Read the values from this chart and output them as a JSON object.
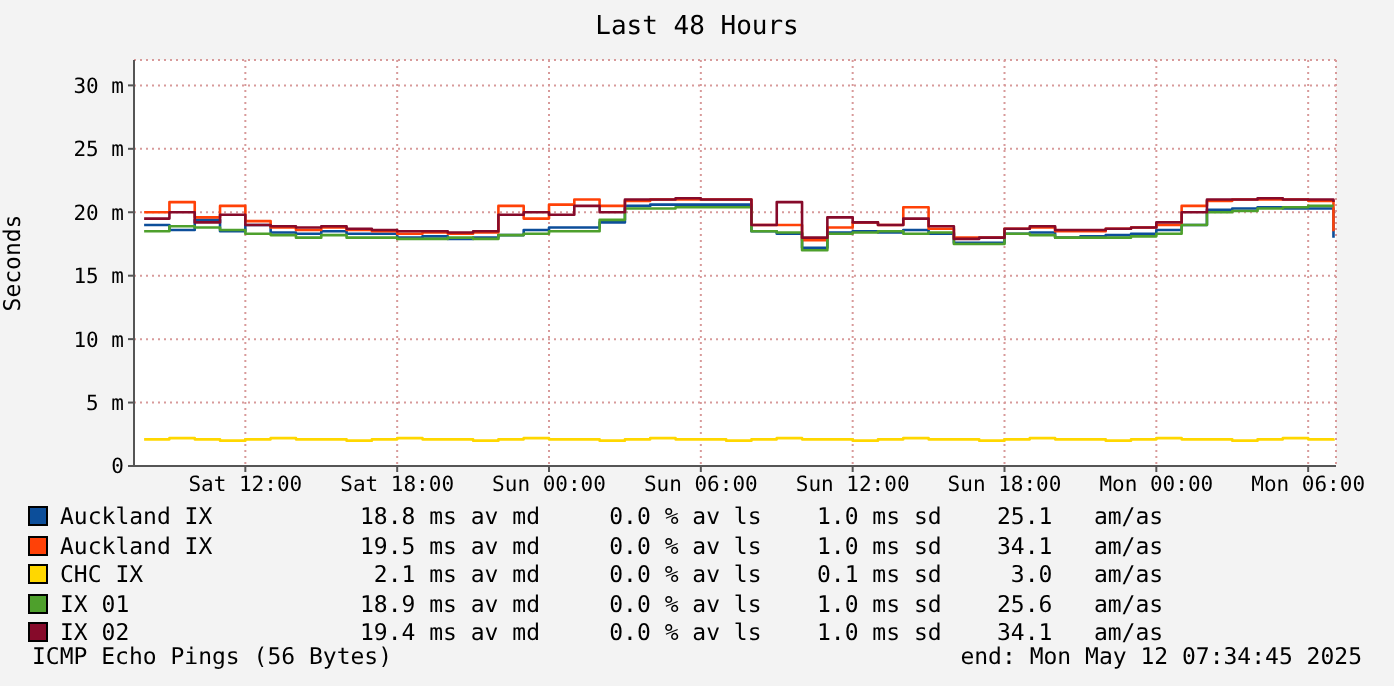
{
  "chart_data": {
    "type": "step",
    "title": "Last 48 Hours",
    "ylabel": "Seconds",
    "x": [
      "2025-05-10T08:00",
      "2025-05-10T09:00",
      "2025-05-10T10:00",
      "2025-05-10T11:00",
      "2025-05-10T12:00",
      "2025-05-10T13:00",
      "2025-05-10T14:00",
      "2025-05-10T15:00",
      "2025-05-10T16:00",
      "2025-05-10T17:00",
      "2025-05-10T18:00",
      "2025-05-10T19:00",
      "2025-05-10T20:00",
      "2025-05-10T21:00",
      "2025-05-10T22:00",
      "2025-05-10T23:00",
      "2025-05-11T00:00",
      "2025-05-11T01:00",
      "2025-05-11T02:00",
      "2025-05-11T03:00",
      "2025-05-11T04:00",
      "2025-05-11T05:00",
      "2025-05-11T06:00",
      "2025-05-11T07:00",
      "2025-05-11T08:00",
      "2025-05-11T09:00",
      "2025-05-11T10:00",
      "2025-05-11T11:00",
      "2025-05-11T12:00",
      "2025-05-11T13:00",
      "2025-05-11T14:00",
      "2025-05-11T15:00",
      "2025-05-11T16:00",
      "2025-05-11T17:00",
      "2025-05-11T18:00",
      "2025-05-11T19:00",
      "2025-05-11T20:00",
      "2025-05-11T21:00",
      "2025-05-11T22:00",
      "2025-05-11T23:00",
      "2025-05-12T00:00",
      "2025-05-12T01:00",
      "2025-05-12T02:00",
      "2025-05-12T03:00",
      "2025-05-12T04:00",
      "2025-05-12T05:00",
      "2025-05-12T06:00",
      "2025-05-12T07:00"
    ],
    "xlim": [
      "2025-05-10T07:36",
      "2025-05-12T07:06"
    ],
    "xticks": [
      {
        "value": "2025-05-10T12:00",
        "label": "Sat 12:00"
      },
      {
        "value": "2025-05-10T18:00",
        "label": "Sat 18:00"
      },
      {
        "value": "2025-05-11T00:00",
        "label": "Sun 00:00"
      },
      {
        "value": "2025-05-11T06:00",
        "label": "Sun 06:00"
      },
      {
        "value": "2025-05-11T12:00",
        "label": "Sun 12:00"
      },
      {
        "value": "2025-05-11T18:00",
        "label": "Sun 18:00"
      },
      {
        "value": "2025-05-12T00:00",
        "label": "Mon 00:00"
      },
      {
        "value": "2025-05-12T06:00",
        "label": "Mon 06:00"
      }
    ],
    "ylim": [
      0,
      32
    ],
    "yticks": [
      0,
      {
        "value": 5,
        "label": "5 m"
      },
      {
        "value": 10,
        "label": "10 m"
      },
      {
        "value": 15,
        "label": "15 m"
      },
      {
        "value": 20,
        "label": "20 m"
      },
      {
        "value": 25,
        "label": "25 m"
      },
      {
        "value": 30,
        "label": "30 m"
      }
    ],
    "grid": true,
    "legend": "bottom",
    "marker": "none",
    "series": [
      {
        "name": "Auckland IX",
        "color": "#0c4e9a",
        "values": [
          19.0,
          18.6,
          19.4,
          18.5,
          19.0,
          18.4,
          18.3,
          18.5,
          18.3,
          18.3,
          18.0,
          18.1,
          17.9,
          18.0,
          18.2,
          18.6,
          18.8,
          18.8,
          19.2,
          20.5,
          20.6,
          20.6,
          20.6,
          20.6,
          18.5,
          18.3,
          17.2,
          18.4,
          18.5,
          18.4,
          18.6,
          18.3,
          17.6,
          17.6,
          18.3,
          18.4,
          18.0,
          18.1,
          18.2,
          18.3,
          18.6,
          19.0,
          20.2,
          20.3,
          20.4,
          20.3,
          20.3,
          18.0
        ]
      },
      {
        "name": "Auckland IX",
        "color": "#ff4107",
        "values": [
          20.0,
          20.8,
          19.6,
          20.5,
          19.3,
          18.8,
          18.6,
          18.8,
          18.6,
          18.5,
          18.3,
          18.4,
          18.3,
          18.4,
          20.5,
          19.5,
          20.6,
          21.0,
          20.5,
          20.9,
          21.0,
          21.0,
          21.0,
          21.0,
          19.0,
          19.0,
          17.8,
          18.8,
          19.2,
          19.0,
          20.4,
          18.7,
          18.0,
          18.0,
          18.7,
          18.8,
          18.5,
          18.5,
          18.7,
          18.8,
          19.0,
          20.5,
          20.9,
          21.0,
          21.0,
          21.0,
          20.9,
          18.5
        ]
      },
      {
        "name": "CHC IX",
        "color": "#ffd700",
        "values": [
          2.1,
          2.2,
          2.1,
          2.0,
          2.1,
          2.2,
          2.1,
          2.1,
          2.0,
          2.1,
          2.2,
          2.1,
          2.1,
          2.0,
          2.1,
          2.2,
          2.1,
          2.1,
          2.0,
          2.1,
          2.2,
          2.1,
          2.1,
          2.0,
          2.1,
          2.2,
          2.1,
          2.1,
          2.0,
          2.1,
          2.2,
          2.1,
          2.1,
          2.0,
          2.1,
          2.2,
          2.1,
          2.1,
          2.0,
          2.1,
          2.2,
          2.1,
          2.1,
          2.0,
          2.1,
          2.2,
          2.1,
          2.0
        ]
      },
      {
        "name": "IX 01",
        "color": "#4ea02c",
        "values": [
          18.5,
          18.9,
          18.8,
          18.6,
          18.3,
          18.2,
          18.0,
          18.2,
          18.0,
          18.0,
          17.9,
          17.9,
          18.0,
          17.9,
          18.2,
          18.3,
          18.5,
          18.5,
          19.4,
          20.3,
          20.3,
          20.4,
          20.4,
          20.4,
          18.5,
          18.4,
          17.0,
          18.3,
          18.4,
          18.5,
          18.3,
          18.4,
          17.5,
          17.5,
          18.3,
          18.2,
          18.0,
          18.0,
          18.0,
          18.1,
          18.3,
          19.0,
          20.0,
          20.1,
          20.3,
          20.4,
          20.5,
          20.5
        ]
      },
      {
        "name": "IX 02",
        "color": "#860a2a",
        "values": [
          19.5,
          20.0,
          19.2,
          19.8,
          19.0,
          18.9,
          18.8,
          18.9,
          18.7,
          18.6,
          18.5,
          18.5,
          18.4,
          18.5,
          19.8,
          20.0,
          19.8,
          20.5,
          20.0,
          21.0,
          21.0,
          21.1,
          21.0,
          21.0,
          19.0,
          20.8,
          18.0,
          19.6,
          19.2,
          19.0,
          19.5,
          18.9,
          17.9,
          18.0,
          18.7,
          18.9,
          18.6,
          18.6,
          18.7,
          18.8,
          19.2,
          20.0,
          21.0,
          21.0,
          21.1,
          21.0,
          21.0,
          20.8
        ]
      }
    ],
    "annotations": [
      "18.8 ms av md     0.0 % av ls    1.0 ms sd    25.1   am/as",
      "19.5 ms av md     0.0 % av ls    1.0 ms sd    34.1   am/as",
      " 2.1 ms av md     0.0 % av ls    0.1 ms sd     3.0   am/as",
      "18.9 ms av md     0.0 % av ls    1.0 ms sd    25.6   am/as",
      "19.4 ms av md     0.0 % av ls    1.0 ms sd    34.1   am/as",
      "ICMP Echo Pings (56 Bytes)",
      "end: Mon May 12 07:34:45 2025"
    ]
  }
}
